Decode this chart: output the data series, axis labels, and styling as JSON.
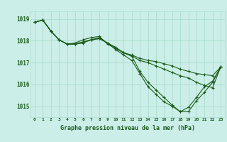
{
  "title": "Graphe pression niveau de la mer (hPa)",
  "background_color": "#cceee8",
  "grid_color": "#aaddcc",
  "line_color": "#1a5c1a",
  "xlim": [
    -0.5,
    23.5
  ],
  "ylim": [
    1014.5,
    1019.35
  ],
  "yticks": [
    1015,
    1016,
    1017,
    1018,
    1019
  ],
  "xticks": [
    0,
    1,
    2,
    3,
    4,
    5,
    6,
    7,
    8,
    9,
    10,
    11,
    12,
    13,
    14,
    15,
    16,
    17,
    18,
    19,
    20,
    21,
    22,
    23
  ],
  "series": [
    [
      1018.85,
      1018.95,
      1018.45,
      1018.05,
      1017.85,
      1017.85,
      1017.95,
      1018.05,
      1018.1,
      1017.9,
      1017.7,
      1017.45,
      1017.3,
      1016.6,
      1016.1,
      1015.75,
      1015.4,
      1015.05,
      1014.75,
      1014.75,
      1015.25,
      1015.65,
      1016.1,
      1016.8
    ],
    [
      1018.85,
      1018.95,
      1018.45,
      1018.05,
      1017.85,
      1017.9,
      1018.05,
      1018.15,
      1018.2,
      1017.85,
      1017.65,
      1017.45,
      1017.35,
      1017.2,
      1017.1,
      1017.05,
      1016.95,
      1016.85,
      1016.7,
      1016.6,
      1016.5,
      1016.45,
      1016.4,
      1016.8
    ],
    [
      1018.85,
      1018.95,
      1018.45,
      1018.05,
      1017.85,
      1017.85,
      1017.9,
      1018.05,
      1018.1,
      1017.9,
      1017.6,
      1017.35,
      1017.1,
      1016.5,
      1015.9,
      1015.55,
      1015.2,
      1015.0,
      1014.75,
      1014.95,
      1015.4,
      1015.9,
      1016.15,
      1016.8
    ],
    [
      1018.85,
      1018.95,
      1018.45,
      1018.05,
      1017.85,
      1017.85,
      1017.95,
      1018.05,
      1018.15,
      1017.9,
      1017.7,
      1017.45,
      1017.3,
      1017.1,
      1017.0,
      1016.85,
      1016.7,
      1016.55,
      1016.4,
      1016.3,
      1016.1,
      1015.95,
      1015.85,
      1016.8
    ]
  ]
}
